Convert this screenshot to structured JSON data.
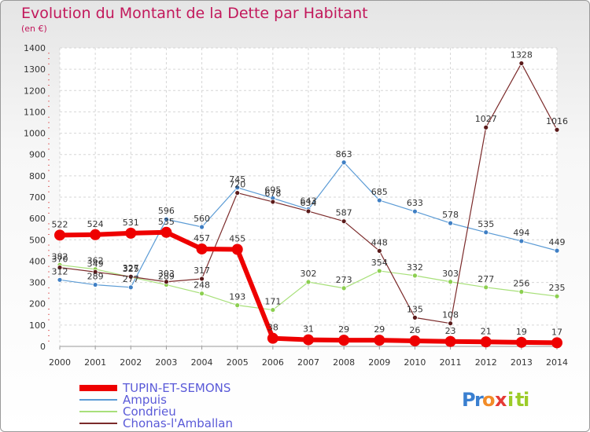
{
  "title": "Evolution du Montant de la Dette par Habitant",
  "unit": "(en €)",
  "brand": {
    "text": "Proxiti",
    "letters": [
      "P",
      "r",
      "o",
      "x",
      "i",
      "t",
      "i"
    ],
    "colors": [
      "#3a7fd0",
      "#3a7fd0",
      "#f28c28",
      "#e53935",
      "#9ccc28",
      "#9ccc28",
      "#9ccc28"
    ]
  },
  "chart_data": {
    "type": "line",
    "x": [
      "2000",
      "2001",
      "2002",
      "2003",
      "2004",
      "2005",
      "2006",
      "2007",
      "2008",
      "2009",
      "2010",
      "2011",
      "2012",
      "2013",
      "2014"
    ],
    "ylim": [
      0,
      1400
    ],
    "yticks": [
      "0",
      "100",
      "200",
      "300",
      "400",
      "500",
      "600",
      "700",
      "800",
      "900",
      "1000",
      "1100",
      "1200",
      "1300",
      "1400"
    ],
    "grid": true,
    "legend_position": "bottom-left",
    "series": [
      {
        "name": "TUPIN-ET-SEMONS",
        "color": "#ee0000",
        "point_color": "#ee0000",
        "label_color": "#333333",
        "width": 6,
        "marker": 7,
        "values": [
          522,
          524,
          531,
          535,
          457,
          455,
          38,
          31,
          29,
          29,
          26,
          23,
          21,
          19,
          17
        ]
      },
      {
        "name": "Ampuis",
        "color": "#5b9bd5",
        "point_color": "#3f7fc4",
        "label_color": "#333333",
        "width": 1.2,
        "marker": 3,
        "values": [
          312,
          289,
          277,
          596,
          560,
          745,
          695,
          643,
          863,
          685,
          633,
          578,
          535,
          494,
          449
        ]
      },
      {
        "name": "Condrieu",
        "color": "#a8e07a",
        "point_color": "#8ccf50",
        "label_color": "#333333",
        "width": 1.2,
        "marker": 3,
        "values": [
          382,
          362,
          325,
          289,
          248,
          193,
          171,
          302,
          273,
          354,
          332,
          303,
          277,
          256,
          235
        ]
      },
      {
        "name": "Chonas-l'Amballan",
        "color": "#7b2a2a",
        "point_color": "#5a1a1a",
        "label_color": "#333333",
        "width": 1.2,
        "marker": 3,
        "values": [
          370,
          349,
          327,
          303,
          317,
          720,
          678,
          634,
          587,
          448,
          135,
          108,
          1027,
          1328,
          1016
        ]
      }
    ]
  }
}
